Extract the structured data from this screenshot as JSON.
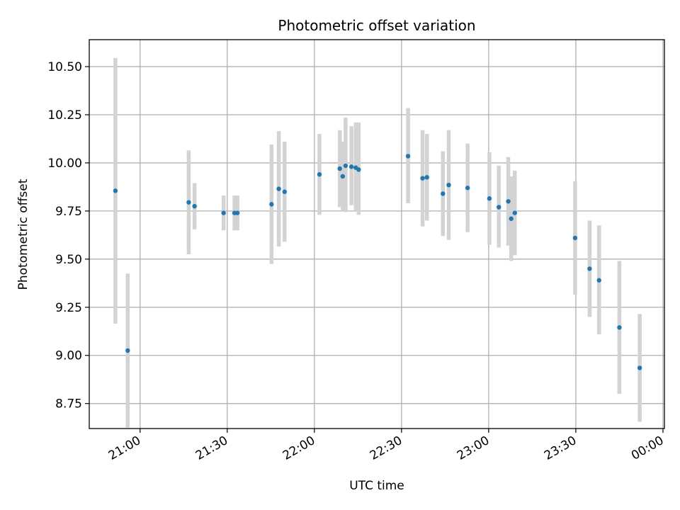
{
  "chart_data": {
    "type": "scatter",
    "title": "Photometric offset variation",
    "xlabel": "UTC time",
    "ylabel": "Photometric offset",
    "x_ticks": [
      "21:00",
      "21:30",
      "22:00",
      "22:30",
      "23:00",
      "23:30",
      "00:00"
    ],
    "y_ticks": [
      "8.75",
      "9.00",
      "9.25",
      "9.50",
      "9.75",
      "10.00",
      "10.25",
      "10.50"
    ],
    "xlim": [
      "20:42:30",
      "00:00:30"
    ],
    "ylim": [
      8.62,
      10.64
    ],
    "grid": true,
    "colors": {
      "point": "#1f77b4",
      "error_bar": "#d3d3d3",
      "grid": "#b0b0b0"
    },
    "points": [
      {
        "x": "20:51:30",
        "y": 9.855,
        "ylo": 9.165,
        "yhi": 10.545
      },
      {
        "x": "20:55:45",
        "y": 9.025,
        "ylo": 8.625,
        "yhi": 9.425
      },
      {
        "x": "21:16:45",
        "y": 9.795,
        "ylo": 9.525,
        "yhi": 10.065
      },
      {
        "x": "21:18:45",
        "y": 9.775,
        "ylo": 9.655,
        "yhi": 9.895
      },
      {
        "x": "21:28:45",
        "y": 9.74,
        "ylo": 9.65,
        "yhi": 9.83
      },
      {
        "x": "21:32:30",
        "y": 9.74,
        "ylo": 9.65,
        "yhi": 9.83
      },
      {
        "x": "21:33:30",
        "y": 9.74,
        "ylo": 9.65,
        "yhi": 9.83
      },
      {
        "x": "21:45:15",
        "y": 9.785,
        "ylo": 9.475,
        "yhi": 10.095
      },
      {
        "x": "21:47:45",
        "y": 9.865,
        "ylo": 9.565,
        "yhi": 10.165
      },
      {
        "x": "21:49:45",
        "y": 9.85,
        "ylo": 9.59,
        "yhi": 10.11
      },
      {
        "x": "22:01:45",
        "y": 9.94,
        "ylo": 9.73,
        "yhi": 10.15
      },
      {
        "x": "22:08:45",
        "y": 9.97,
        "ylo": 9.77,
        "yhi": 10.17
      },
      {
        "x": "22:09:45",
        "y": 9.93,
        "ylo": 9.75,
        "yhi": 10.11
      },
      {
        "x": "22:10:45",
        "y": 9.985,
        "ylo": 9.745,
        "yhi": 10.235
      },
      {
        "x": "22:12:45",
        "y": 9.98,
        "ylo": 9.78,
        "yhi": 10.19
      },
      {
        "x": "22:14:15",
        "y": 9.975,
        "ylo": 9.75,
        "yhi": 10.21
      },
      {
        "x": "22:15:15",
        "y": 9.965,
        "ylo": 9.73,
        "yhi": 10.21
      },
      {
        "x": "22:32:15",
        "y": 10.035,
        "ylo": 9.79,
        "yhi": 10.285
      },
      {
        "x": "22:37:15",
        "y": 9.92,
        "ylo": 9.67,
        "yhi": 10.17
      },
      {
        "x": "22:38:45",
        "y": 9.925,
        "ylo": 9.7,
        "yhi": 10.15
      },
      {
        "x": "22:44:15",
        "y": 9.84,
        "ylo": 9.62,
        "yhi": 10.06
      },
      {
        "x": "22:46:15",
        "y": 9.885,
        "ylo": 9.6,
        "yhi": 10.17
      },
      {
        "x": "22:52:45",
        "y": 9.87,
        "ylo": 9.64,
        "yhi": 10.1
      },
      {
        "x": "23:00:15",
        "y": 9.815,
        "ylo": 9.575,
        "yhi": 10.055
      },
      {
        "x": "23:03:30",
        "y": 9.77,
        "ylo": 9.56,
        "yhi": 9.985
      },
      {
        "x": "23:06:45",
        "y": 9.8,
        "ylo": 9.57,
        "yhi": 10.03
      },
      {
        "x": "23:07:45",
        "y": 9.71,
        "ylo": 9.49,
        "yhi": 9.93
      },
      {
        "x": "23:09:00",
        "y": 9.74,
        "ylo": 9.52,
        "yhi": 9.96
      },
      {
        "x": "23:29:45",
        "y": 9.61,
        "ylo": 9.315,
        "yhi": 9.905
      },
      {
        "x": "23:34:45",
        "y": 9.45,
        "ylo": 9.2,
        "yhi": 9.7
      },
      {
        "x": "23:38:00",
        "y": 9.39,
        "ylo": 9.11,
        "yhi": 9.675
      },
      {
        "x": "23:45:00",
        "y": 9.145,
        "ylo": 8.8,
        "yhi": 9.49
      },
      {
        "x": "23:52:00",
        "y": 8.935,
        "ylo": 8.655,
        "yhi": 9.215
      }
    ]
  }
}
